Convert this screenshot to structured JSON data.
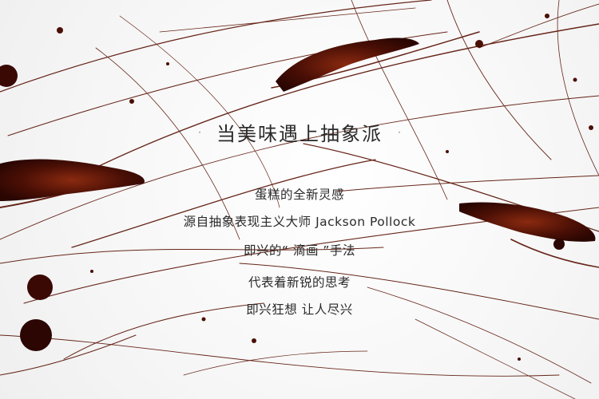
{
  "headline": {
    "dot_left": "·",
    "title": "当美味遇上抽象派",
    "dot_right": "·"
  },
  "body_lines": [
    "蛋糕的全新灵感",
    "源自抽象表现主义大师 Jackson Pollock",
    "即兴的“ 滴画 ”手法",
    "代表着新锐的思考",
    "即兴狂想 让人尽兴"
  ],
  "colors": {
    "chocolate": "#5a1407",
    "chocolate_dark": "#2b0602",
    "text": "#2a2a2a"
  }
}
